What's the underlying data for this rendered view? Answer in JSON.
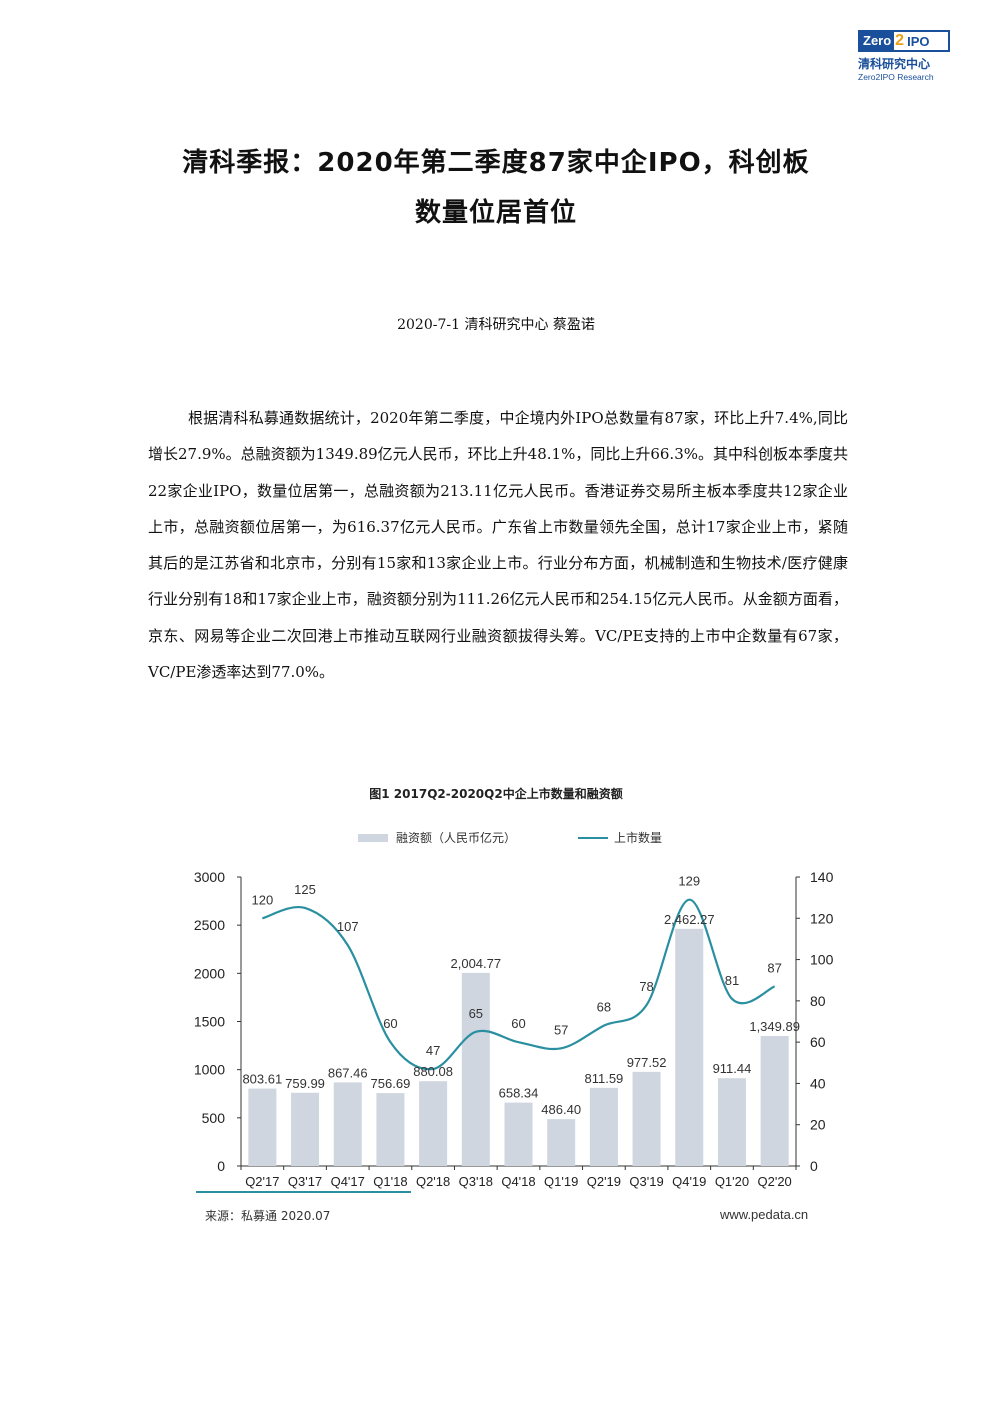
{
  "logo": {
    "badge_left": "Zero",
    "badge_mid": "2",
    "badge_right": "IPO",
    "cn": "清科研究中心",
    "en": "Zero2IPO Research",
    "brand_color": "#1a4f9c",
    "accent_color": "#e9a21a"
  },
  "title": {
    "line1": "清科季报：2020年第二季度87家中企IPO，科创板",
    "line2": "数量位居首位"
  },
  "byline": "2020-7-1 清科研究中心 蔡盈诺",
  "paragraph": "根据清科私募通数据统计，2020年第二季度，中企境内外IPO总数量有87家，环比上升7.4%,同比增长27.9%。总融资额为1349.89亿元人民币，环比上升48.1%，同比上升66.3%。其中科创板本季度共22家企业IPO，数量位居第一，总融资额为213.11亿元人民币。香港证券交易所主板本季度共12家企业上市，总融资额位居第一，为616.37亿元人民币。广东省上市数量领先全国，总计17家企业上市，紧随其后的是江苏省和北京市，分别有15家和13家企业上市。行业分布方面，机械制造和生物技术/医疗健康行业分别有18和17家企业上市，融资额分别为111.26亿元人民币和254.15亿元人民币。从金额方面看，京东、网易等企业二次回港上市推动互联网行业融资额拔得头筹。VC/PE支持的上市中企数量有67家，VC/PE渗透率达到77.0%。",
  "chart_title": "图1 2017Q2-2020Q2中企上市数量和融资额",
  "source_left": "来源：私募通 2020.07",
  "source_right": "www.pedata.cn",
  "chart_data": {
    "type": "bar",
    "title": "图1 2017Q2-2020Q2中企上市数量和融资额",
    "categories": [
      "Q2'17",
      "Q3'17",
      "Q4'17",
      "Q1'18",
      "Q2'18",
      "Q3'18",
      "Q4'18",
      "Q1'19",
      "Q2'19",
      "Q3'19",
      "Q4'19",
      "Q1'20",
      "Q2'20"
    ],
    "series": [
      {
        "name": "融资额（人民币亿元）",
        "type": "bar",
        "axis": "left",
        "color": "#d0d6df",
        "values": [
          803.61,
          759.99,
          867.46,
          756.69,
          880.08,
          2004.77,
          658.34,
          486.4,
          811.59,
          977.52,
          2462.27,
          911.44,
          1349.89
        ],
        "labels": [
          "803.61",
          "759.99",
          "867.46",
          "756.69",
          "880.08",
          "2,004.77",
          "658.34",
          "486.40",
          "811.59",
          "977.52",
          "2,462.27",
          "911.44",
          "1,349.89"
        ]
      },
      {
        "name": "上市数量",
        "type": "line",
        "axis": "right",
        "color": "#2a8fa0",
        "values": [
          120,
          125,
          107,
          60,
          47,
          65,
          60,
          57,
          68,
          78,
          129,
          81,
          87
        ],
        "labels": [
          "120",
          "125",
          "107",
          "60",
          "47",
          "65",
          "60",
          "57",
          "68",
          "78",
          "129",
          "81",
          "87"
        ]
      }
    ],
    "ylim_left": [
      0,
      3000
    ],
    "yticks_left": [
      "0",
      "500",
      "1000",
      "1500",
      "2000",
      "2500",
      "3000"
    ],
    "ylim_right": [
      0,
      140
    ],
    "yticks_right": [
      "0",
      "20",
      "40",
      "60",
      "80",
      "100",
      "120",
      "140"
    ],
    "legend": "top",
    "grid": false
  }
}
